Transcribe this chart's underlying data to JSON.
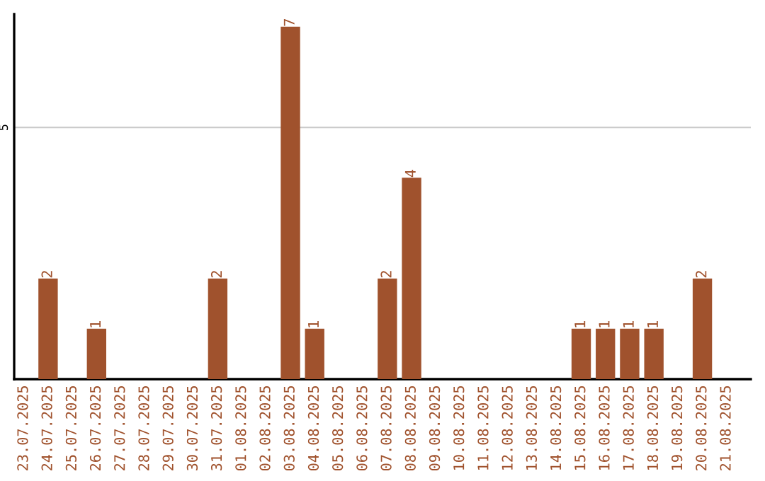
{
  "chart_data": {
    "type": "bar",
    "categories": [
      "23.07.2025",
      "24.07.2025",
      "25.07.2025",
      "26.07.2025",
      "27.07.2025",
      "28.07.2025",
      "29.07.2025",
      "30.07.2025",
      "31.07.2025",
      "01.08.2025",
      "02.08.2025",
      "03.08.2025",
      "04.08.2025",
      "05.08.2025",
      "06.08.2025",
      "07.08.2025",
      "08.08.2025",
      "09.08.2025",
      "10.08.2025",
      "11.08.2025",
      "12.08.2025",
      "13.08.2025",
      "14.08.2025",
      "15.08.2025",
      "16.08.2025",
      "17.08.2025",
      "18.08.2025",
      "19.08.2025",
      "20.08.2025",
      "21.08.2025"
    ],
    "values": [
      0,
      2,
      0,
      1,
      0,
      0,
      0,
      0,
      2,
      0,
      0,
      7,
      1,
      0,
      0,
      2,
      4,
      0,
      0,
      0,
      0,
      0,
      0,
      1,
      1,
      1,
      1,
      0,
      2,
      0
    ],
    "value_labels": [
      null,
      "2",
      null,
      "1",
      null,
      null,
      null,
      null,
      "2",
      null,
      null,
      "7",
      "1",
      null,
      null,
      "2",
      "4",
      null,
      null,
      null,
      null,
      null,
      null,
      "1",
      "1",
      "1",
      "1",
      null,
      "2",
      null
    ],
    "color": "#a0522d",
    "ylim": [
      0,
      7.25
    ],
    "yticks": [
      5
    ],
    "grid": "y",
    "legend": false
  }
}
